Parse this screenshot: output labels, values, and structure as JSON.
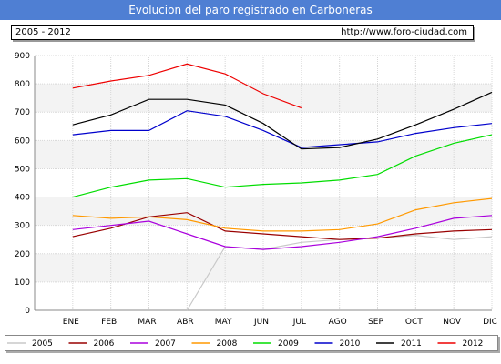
{
  "header": {
    "title": "Evolucion del paro registrado en Carboneras",
    "period": "2005 - 2012",
    "url": "http://www.foro-ciudad.com"
  },
  "chart_data": {
    "type": "line",
    "title": "Evolucion del paro registrado en Carboneras",
    "xlabel": "",
    "ylabel": "",
    "ylim": [
      0,
      900
    ],
    "yticks": [
      0,
      100,
      200,
      300,
      400,
      500,
      600,
      700,
      800,
      900
    ],
    "categories": [
      "ENE",
      "FEB",
      "MAR",
      "ABR",
      "MAY",
      "JUN",
      "JUL",
      "AGO",
      "SEP",
      "OCT",
      "NOV",
      "DIC"
    ],
    "grid": true,
    "legend_position": "bottom",
    "series": [
      {
        "name": "2005",
        "color": "#c8c8c8",
        "values": [
          null,
          null,
          null,
          0,
          225,
          215,
          240,
          250,
          255,
          265,
          250,
          260
        ]
      },
      {
        "name": "2006",
        "color": "#990000",
        "values": [
          260,
          290,
          330,
          345,
          280,
          270,
          260,
          250,
          255,
          270,
          280,
          285
        ]
      },
      {
        "name": "2007",
        "color": "#aa00dd",
        "values": [
          285,
          300,
          315,
          270,
          225,
          215,
          225,
          240,
          260,
          290,
          325,
          335
        ]
      },
      {
        "name": "2008",
        "color": "#ff9900",
        "values": [
          335,
          325,
          330,
          320,
          290,
          280,
          280,
          285,
          305,
          355,
          380,
          395
        ]
      },
      {
        "name": "2009",
        "color": "#00dd00",
        "values": [
          400,
          435,
          460,
          465,
          435,
          445,
          450,
          460,
          480,
          545,
          590,
          620
        ]
      },
      {
        "name": "2010",
        "color": "#0000cc",
        "values": [
          620,
          635,
          635,
          705,
          685,
          635,
          575,
          585,
          595,
          625,
          645,
          660
        ]
      },
      {
        "name": "2011",
        "color": "#000000",
        "values": [
          655,
          690,
          745,
          745,
          725,
          660,
          570,
          575,
          605,
          655,
          710,
          770
        ]
      },
      {
        "name": "2012",
        "color": "#ee0000",
        "values": [
          785,
          810,
          830,
          870,
          835,
          765,
          715,
          null,
          null,
          null,
          null,
          null
        ]
      }
    ]
  }
}
